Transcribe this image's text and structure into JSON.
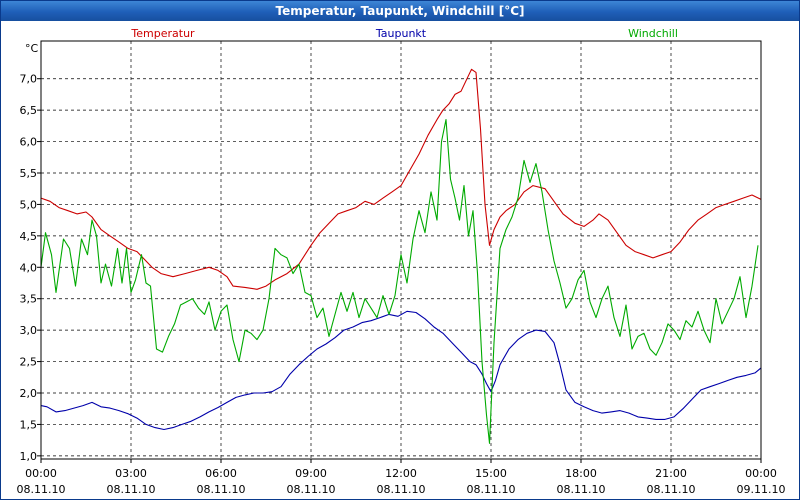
{
  "window": {
    "title": "Temperatur, Taupunkt, Windchill [°C]"
  },
  "chart_data": {
    "type": "line",
    "title": "Temperatur, Taupunkt, Windchill [°C]",
    "ylabel": "°C",
    "xlabel": "",
    "ylim": [
      0.95,
      7.6
    ],
    "xlim": [
      0,
      24
    ],
    "grid": true,
    "yticks": [
      {
        "value": 1.0,
        "label": "1,0"
      },
      {
        "value": 1.5,
        "label": "1,5"
      },
      {
        "value": 2.0,
        "label": "2,0"
      },
      {
        "value": 2.5,
        "label": "2,5"
      },
      {
        "value": 3.0,
        "label": "3,0"
      },
      {
        "value": 3.5,
        "label": "3,5"
      },
      {
        "value": 4.0,
        "label": "4,0"
      },
      {
        "value": 4.5,
        "label": "4,5"
      },
      {
        "value": 5.0,
        "label": "5,0"
      },
      {
        "value": 5.5,
        "label": "5,5"
      },
      {
        "value": 6.0,
        "label": "6,0"
      },
      {
        "value": 6.5,
        "label": "6,5"
      },
      {
        "value": 7.0,
        "label": "7,0"
      }
    ],
    "xticks": [
      {
        "value": 0,
        "time": "00:00",
        "date": "08.11.10"
      },
      {
        "value": 3,
        "time": "03:00",
        "date": "08.11.10"
      },
      {
        "value": 6,
        "time": "06:00",
        "date": "08.11.10"
      },
      {
        "value": 9,
        "time": "09:00",
        "date": "08.11.10"
      },
      {
        "value": 12,
        "time": "12:00",
        "date": "08.11.10"
      },
      {
        "value": 15,
        "time": "15:00",
        "date": "08.11.10"
      },
      {
        "value": 18,
        "time": "18:00",
        "date": "08.11.10"
      },
      {
        "value": 21,
        "time": "21:00",
        "date": "08.11.10"
      },
      {
        "value": 24,
        "time": "00:00",
        "date": "09.11.10"
      }
    ],
    "series": [
      {
        "name": "Temperatur",
        "color": "#cc0000",
        "legend": "left",
        "points": [
          [
            0,
            5.1
          ],
          [
            0.3,
            5.05
          ],
          [
            0.6,
            4.95
          ],
          [
            0.9,
            4.9
          ],
          [
            1.2,
            4.85
          ],
          [
            1.5,
            4.88
          ],
          [
            1.7,
            4.8
          ],
          [
            2.0,
            4.6
          ],
          [
            2.3,
            4.5
          ],
          [
            2.6,
            4.4
          ],
          [
            2.9,
            4.3
          ],
          [
            3.2,
            4.25
          ],
          [
            3.5,
            4.1
          ],
          [
            3.7,
            4.0
          ],
          [
            4.0,
            3.9
          ],
          [
            4.4,
            3.85
          ],
          [
            4.8,
            3.9
          ],
          [
            5.2,
            3.95
          ],
          [
            5.6,
            4.0
          ],
          [
            5.9,
            3.95
          ],
          [
            6.2,
            3.85
          ],
          [
            6.4,
            3.7
          ],
          [
            6.8,
            3.68
          ],
          [
            7.2,
            3.65
          ],
          [
            7.5,
            3.7
          ],
          [
            7.8,
            3.8
          ],
          [
            8.2,
            3.9
          ],
          [
            8.6,
            4.05
          ],
          [
            9.0,
            4.35
          ],
          [
            9.3,
            4.55
          ],
          [
            9.6,
            4.7
          ],
          [
            9.9,
            4.85
          ],
          [
            10.2,
            4.9
          ],
          [
            10.5,
            4.95
          ],
          [
            10.8,
            5.05
          ],
          [
            11.1,
            5.0
          ],
          [
            11.4,
            5.1
          ],
          [
            11.7,
            5.2
          ],
          [
            12.0,
            5.3
          ],
          [
            12.3,
            5.55
          ],
          [
            12.6,
            5.8
          ],
          [
            12.9,
            6.1
          ],
          [
            13.2,
            6.35
          ],
          [
            13.4,
            6.5
          ],
          [
            13.6,
            6.6
          ],
          [
            13.8,
            6.75
          ],
          [
            14.0,
            6.8
          ],
          [
            14.2,
            7.0
          ],
          [
            14.35,
            7.15
          ],
          [
            14.5,
            7.1
          ],
          [
            14.65,
            6.2
          ],
          [
            14.8,
            5.0
          ],
          [
            14.95,
            4.35
          ],
          [
            15.1,
            4.6
          ],
          [
            15.3,
            4.8
          ],
          [
            15.5,
            4.9
          ],
          [
            15.8,
            5.0
          ],
          [
            16.1,
            5.2
          ],
          [
            16.4,
            5.3
          ],
          [
            16.8,
            5.25
          ],
          [
            17.1,
            5.05
          ],
          [
            17.4,
            4.85
          ],
          [
            17.8,
            4.7
          ],
          [
            18.1,
            4.65
          ],
          [
            18.4,
            4.75
          ],
          [
            18.6,
            4.85
          ],
          [
            18.9,
            4.75
          ],
          [
            19.2,
            4.55
          ],
          [
            19.5,
            4.35
          ],
          [
            19.8,
            4.25
          ],
          [
            20.1,
            4.2
          ],
          [
            20.4,
            4.15
          ],
          [
            20.7,
            4.2
          ],
          [
            21.0,
            4.25
          ],
          [
            21.3,
            4.4
          ],
          [
            21.6,
            4.6
          ],
          [
            21.9,
            4.75
          ],
          [
            22.2,
            4.85
          ],
          [
            22.5,
            4.95
          ],
          [
            22.8,
            5.0
          ],
          [
            23.1,
            5.05
          ],
          [
            23.4,
            5.1
          ],
          [
            23.7,
            5.15
          ],
          [
            24.0,
            5.08
          ]
        ]
      },
      {
        "name": "Taupunkt",
        "color": "#0000aa",
        "legend": "center",
        "points": [
          [
            0,
            1.8
          ],
          [
            0.2,
            1.78
          ],
          [
            0.5,
            1.7
          ],
          [
            0.8,
            1.72
          ],
          [
            1.1,
            1.76
          ],
          [
            1.4,
            1.8
          ],
          [
            1.7,
            1.85
          ],
          [
            2.0,
            1.78
          ],
          [
            2.3,
            1.76
          ],
          [
            2.6,
            1.72
          ],
          [
            2.9,
            1.67
          ],
          [
            3.2,
            1.6
          ],
          [
            3.5,
            1.5
          ],
          [
            3.8,
            1.45
          ],
          [
            4.1,
            1.42
          ],
          [
            4.4,
            1.45
          ],
          [
            4.7,
            1.5
          ],
          [
            5.0,
            1.55
          ],
          [
            5.3,
            1.62
          ],
          [
            5.6,
            1.7
          ],
          [
            5.9,
            1.77
          ],
          [
            6.2,
            1.85
          ],
          [
            6.5,
            1.93
          ],
          [
            6.8,
            1.97
          ],
          [
            7.1,
            2.0
          ],
          [
            7.4,
            2.0
          ],
          [
            7.7,
            2.02
          ],
          [
            8.0,
            2.1
          ],
          [
            8.3,
            2.3
          ],
          [
            8.6,
            2.45
          ],
          [
            8.9,
            2.58
          ],
          [
            9.2,
            2.7
          ],
          [
            9.5,
            2.78
          ],
          [
            9.8,
            2.88
          ],
          [
            10.1,
            3.0
          ],
          [
            10.4,
            3.05
          ],
          [
            10.7,
            3.12
          ],
          [
            11.0,
            3.15
          ],
          [
            11.3,
            3.2
          ],
          [
            11.6,
            3.25
          ],
          [
            11.9,
            3.22
          ],
          [
            12.2,
            3.3
          ],
          [
            12.5,
            3.28
          ],
          [
            12.8,
            3.18
          ],
          [
            13.1,
            3.05
          ],
          [
            13.4,
            2.95
          ],
          [
            13.7,
            2.8
          ],
          [
            14.0,
            2.65
          ],
          [
            14.3,
            2.5
          ],
          [
            14.5,
            2.45
          ],
          [
            14.7,
            2.3
          ],
          [
            14.85,
            2.15
          ],
          [
            15.0,
            2.02
          ],
          [
            15.15,
            2.2
          ],
          [
            15.3,
            2.45
          ],
          [
            15.6,
            2.7
          ],
          [
            15.9,
            2.85
          ],
          [
            16.2,
            2.95
          ],
          [
            16.5,
            3.0
          ],
          [
            16.8,
            2.98
          ],
          [
            17.1,
            2.8
          ],
          [
            17.3,
            2.45
          ],
          [
            17.5,
            2.05
          ],
          [
            17.8,
            1.85
          ],
          [
            18.1,
            1.78
          ],
          [
            18.4,
            1.72
          ],
          [
            18.7,
            1.68
          ],
          [
            19.0,
            1.7
          ],
          [
            19.3,
            1.72
          ],
          [
            19.6,
            1.68
          ],
          [
            19.9,
            1.62
          ],
          [
            20.2,
            1.6
          ],
          [
            20.5,
            1.58
          ],
          [
            20.8,
            1.58
          ],
          [
            21.1,
            1.62
          ],
          [
            21.4,
            1.75
          ],
          [
            21.7,
            1.9
          ],
          [
            22.0,
            2.05
          ],
          [
            22.3,
            2.1
          ],
          [
            22.6,
            2.15
          ],
          [
            22.9,
            2.2
          ],
          [
            23.2,
            2.25
          ],
          [
            23.5,
            2.28
          ],
          [
            23.8,
            2.32
          ],
          [
            24.0,
            2.4
          ]
        ]
      },
      {
        "name": "Windchill",
        "color": "#00aa00",
        "legend": "right",
        "points": [
          [
            0,
            4.0
          ],
          [
            0.15,
            4.55
          ],
          [
            0.35,
            4.2
          ],
          [
            0.5,
            3.6
          ],
          [
            0.75,
            4.45
          ],
          [
            0.95,
            4.3
          ],
          [
            1.15,
            3.7
          ],
          [
            1.35,
            4.45
          ],
          [
            1.55,
            4.2
          ],
          [
            1.7,
            4.75
          ],
          [
            1.85,
            4.5
          ],
          [
            2.0,
            3.75
          ],
          [
            2.15,
            4.05
          ],
          [
            2.35,
            3.7
          ],
          [
            2.55,
            4.3
          ],
          [
            2.7,
            3.75
          ],
          [
            2.85,
            4.3
          ],
          [
            3.0,
            3.6
          ],
          [
            3.15,
            3.8
          ],
          [
            3.35,
            4.2
          ],
          [
            3.5,
            3.75
          ],
          [
            3.65,
            3.7
          ],
          [
            3.85,
            2.7
          ],
          [
            4.05,
            2.65
          ],
          [
            4.25,
            2.9
          ],
          [
            4.45,
            3.1
          ],
          [
            4.65,
            3.4
          ],
          [
            4.85,
            3.45
          ],
          [
            5.05,
            3.5
          ],
          [
            5.25,
            3.35
          ],
          [
            5.45,
            3.25
          ],
          [
            5.6,
            3.45
          ],
          [
            5.8,
            3.0
          ],
          [
            6.0,
            3.3
          ],
          [
            6.2,
            3.4
          ],
          [
            6.4,
            2.85
          ],
          [
            6.6,
            2.5
          ],
          [
            6.8,
            3.0
          ],
          [
            7.0,
            2.95
          ],
          [
            7.2,
            2.85
          ],
          [
            7.4,
            3.0
          ],
          [
            7.6,
            3.5
          ],
          [
            7.8,
            4.3
          ],
          [
            8.0,
            4.2
          ],
          [
            8.2,
            4.15
          ],
          [
            8.4,
            3.9
          ],
          [
            8.6,
            4.05
          ],
          [
            8.8,
            3.6
          ],
          [
            9.0,
            3.55
          ],
          [
            9.2,
            3.2
          ],
          [
            9.4,
            3.35
          ],
          [
            9.6,
            2.9
          ],
          [
            9.8,
            3.25
          ],
          [
            10.0,
            3.6
          ],
          [
            10.2,
            3.3
          ],
          [
            10.4,
            3.6
          ],
          [
            10.6,
            3.2
          ],
          [
            10.8,
            3.5
          ],
          [
            11.0,
            3.35
          ],
          [
            11.2,
            3.2
          ],
          [
            11.4,
            3.55
          ],
          [
            11.6,
            3.25
          ],
          [
            11.8,
            3.55
          ],
          [
            12.0,
            4.2
          ],
          [
            12.2,
            3.75
          ],
          [
            12.4,
            4.45
          ],
          [
            12.6,
            4.9
          ],
          [
            12.8,
            4.55
          ],
          [
            13.0,
            5.2
          ],
          [
            13.2,
            4.75
          ],
          [
            13.35,
            6.0
          ],
          [
            13.5,
            6.35
          ],
          [
            13.65,
            5.4
          ],
          [
            13.8,
            5.1
          ],
          [
            13.95,
            4.75
          ],
          [
            14.1,
            5.3
          ],
          [
            14.25,
            4.5
          ],
          [
            14.4,
            4.9
          ],
          [
            14.55,
            3.9
          ],
          [
            14.7,
            2.5
          ],
          [
            14.85,
            1.65
          ],
          [
            14.95,
            1.2
          ],
          [
            15.1,
            2.8
          ],
          [
            15.3,
            4.3
          ],
          [
            15.5,
            4.6
          ],
          [
            15.7,
            4.8
          ],
          [
            15.9,
            5.1
          ],
          [
            16.1,
            5.7
          ],
          [
            16.3,
            5.35
          ],
          [
            16.5,
            5.65
          ],
          [
            16.7,
            5.2
          ],
          [
            16.9,
            4.6
          ],
          [
            17.1,
            4.1
          ],
          [
            17.3,
            3.75
          ],
          [
            17.5,
            3.35
          ],
          [
            17.7,
            3.5
          ],
          [
            17.9,
            3.8
          ],
          [
            18.1,
            3.95
          ],
          [
            18.3,
            3.45
          ],
          [
            18.5,
            3.2
          ],
          [
            18.7,
            3.5
          ],
          [
            18.9,
            3.7
          ],
          [
            19.1,
            3.2
          ],
          [
            19.3,
            2.9
          ],
          [
            19.5,
            3.4
          ],
          [
            19.7,
            2.7
          ],
          [
            19.9,
            2.9
          ],
          [
            20.1,
            2.95
          ],
          [
            20.3,
            2.7
          ],
          [
            20.5,
            2.6
          ],
          [
            20.7,
            2.8
          ],
          [
            20.9,
            3.1
          ],
          [
            21.1,
            3.0
          ],
          [
            21.3,
            2.85
          ],
          [
            21.5,
            3.15
          ],
          [
            21.7,
            3.05
          ],
          [
            21.9,
            3.3
          ],
          [
            22.1,
            3.0
          ],
          [
            22.3,
            2.8
          ],
          [
            22.5,
            3.5
          ],
          [
            22.7,
            3.1
          ],
          [
            22.9,
            3.3
          ],
          [
            23.1,
            3.5
          ],
          [
            23.3,
            3.85
          ],
          [
            23.5,
            3.2
          ],
          [
            23.7,
            3.7
          ],
          [
            23.9,
            4.35
          ]
        ]
      }
    ]
  }
}
